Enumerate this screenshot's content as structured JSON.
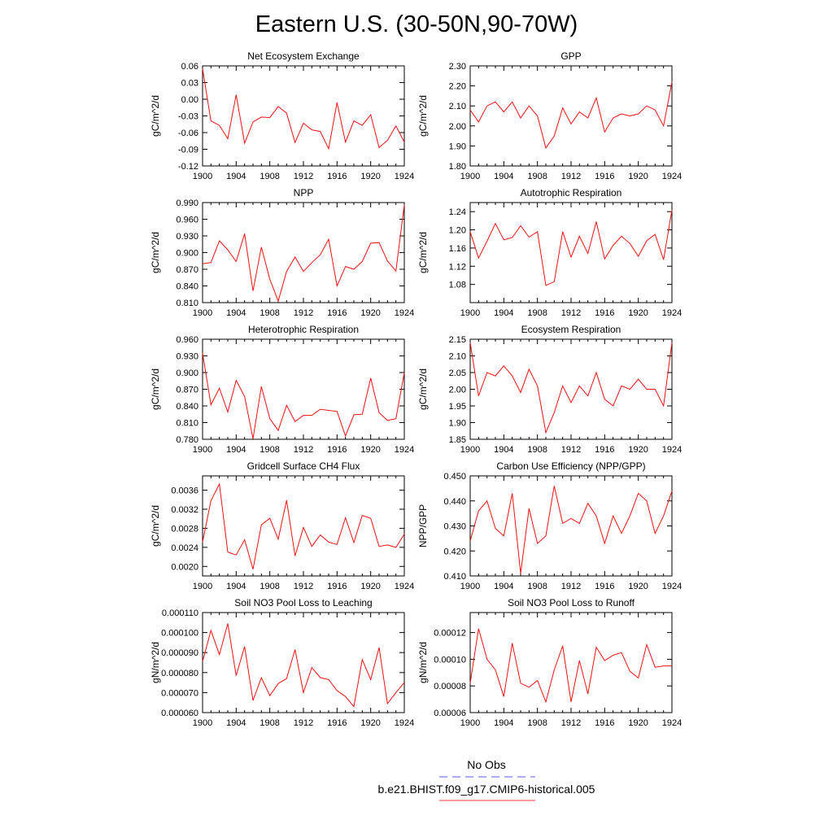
{
  "title": "Eastern U.S. (30-50N,90-70W)",
  "legend": {
    "entries": [
      {
        "name": "No Obs",
        "color": "#5555ee",
        "dashed": true
      },
      {
        "name": "b.e21.BHIST.f09_g17.CMIP6-historical.005",
        "color": "#ee3333",
        "dashed": false
      }
    ]
  },
  "chart_data": [
    {
      "type": "line",
      "title": "Net Ecosystem Exchange",
      "ylabel": "gC/m^2/d",
      "xlim": [
        1900,
        1924
      ],
      "xticks": [
        1900,
        1904,
        1908,
        1912,
        1916,
        1920,
        1924
      ],
      "ylim": [
        -0.12,
        0.06
      ],
      "yticks": [
        "0.06",
        "0.03",
        "0.00",
        "-0.03",
        "-0.06",
        "-0.09",
        "-0.12"
      ],
      "series": [
        {
          "color": "#ee1111",
          "x": [
            1900,
            1901,
            1902,
            1903,
            1904,
            1905,
            1906,
            1907,
            1908,
            1909,
            1910,
            1911,
            1912,
            1913,
            1914,
            1915,
            1916,
            1917,
            1918,
            1919,
            1920,
            1921,
            1922,
            1923,
            1924
          ],
          "y": [
            0.055,
            -0.039,
            -0.047,
            -0.071,
            0.008,
            -0.079,
            -0.041,
            -0.032,
            -0.033,
            -0.013,
            -0.025,
            -0.078,
            -0.043,
            -0.055,
            -0.058,
            -0.089,
            -0.006,
            -0.077,
            -0.039,
            -0.047,
            -0.028,
            -0.087,
            -0.074,
            -0.048,
            -0.077
          ]
        }
      ]
    },
    {
      "type": "line",
      "title": "GPP",
      "ylabel": "gC/m^2/d",
      "xlim": [
        1900,
        1924
      ],
      "xticks": [
        1900,
        1904,
        1908,
        1912,
        1916,
        1920,
        1924
      ],
      "ylim": [
        1.8,
        2.3
      ],
      "yticks": [
        "2.30",
        "2.20",
        "2.10",
        "2.00",
        "1.90",
        "1.80"
      ],
      "series": [
        {
          "color": "#ee1111",
          "x": [
            1900,
            1901,
            1902,
            1903,
            1904,
            1905,
            1906,
            1907,
            1908,
            1909,
            1910,
            1911,
            1912,
            1913,
            1914,
            1915,
            1916,
            1917,
            1918,
            1919,
            1920,
            1921,
            1922,
            1923,
            1924
          ],
          "y": [
            2.08,
            2.02,
            2.1,
            2.12,
            2.07,
            2.12,
            2.04,
            2.1,
            2.05,
            1.89,
            1.95,
            2.09,
            2.01,
            2.07,
            2.04,
            2.14,
            1.97,
            2.04,
            2.06,
            2.05,
            2.06,
            2.1,
            2.08,
            2.0,
            2.22
          ]
        }
      ]
    },
    {
      "type": "line",
      "title": "NPP",
      "ylabel": "gC/m^2/d",
      "xlim": [
        1900,
        1924
      ],
      "xticks": [
        1900,
        1904,
        1908,
        1912,
        1916,
        1920,
        1924
      ],
      "ylim": [
        0.81,
        0.99
      ],
      "yticks": [
        "0.990",
        "0.960",
        "0.930",
        "0.900",
        "0.870",
        "0.840",
        "0.810"
      ],
      "series": [
        {
          "color": "#ee1111",
          "x": [
            1900,
            1901,
            1902,
            1903,
            1904,
            1905,
            1906,
            1907,
            1908,
            1909,
            1910,
            1911,
            1912,
            1913,
            1914,
            1915,
            1916,
            1917,
            1918,
            1919,
            1920,
            1921,
            1922,
            1923,
            1924
          ],
          "y": [
            0.88,
            0.882,
            0.921,
            0.905,
            0.884,
            0.934,
            0.831,
            0.91,
            0.852,
            0.813,
            0.866,
            0.892,
            0.866,
            0.882,
            0.896,
            0.924,
            0.84,
            0.875,
            0.87,
            0.884,
            0.917,
            0.918,
            0.885,
            0.867,
            0.986
          ]
        }
      ]
    },
    {
      "type": "line",
      "title": "Autotrophic Respiration",
      "ylabel": "gC/m^2/d",
      "xlim": [
        1900,
        1924
      ],
      "xticks": [
        1900,
        1904,
        1908,
        1912,
        1916,
        1920,
        1924
      ],
      "ylim": [
        1.04,
        1.26
      ],
      "yticks": [
        "1.24",
        "1.20",
        "1.16",
        "1.12",
        "1.08"
      ],
      "series": [
        {
          "color": "#ee1111",
          "x": [
            1900,
            1901,
            1902,
            1903,
            1904,
            1905,
            1906,
            1907,
            1908,
            1909,
            1910,
            1911,
            1912,
            1913,
            1914,
            1915,
            1916,
            1917,
            1918,
            1919,
            1920,
            1921,
            1922,
            1923,
            1924
          ],
          "y": [
            1.196,
            1.138,
            1.175,
            1.214,
            1.178,
            1.183,
            1.209,
            1.184,
            1.196,
            1.078,
            1.086,
            1.196,
            1.14,
            1.186,
            1.148,
            1.218,
            1.136,
            1.166,
            1.186,
            1.17,
            1.142,
            1.176,
            1.19,
            1.134,
            1.244
          ]
        }
      ]
    },
    {
      "type": "line",
      "title": "Heterotrophic Respiration",
      "ylabel": "gC/m^2/d",
      "xlim": [
        1900,
        1924
      ],
      "xticks": [
        1900,
        1904,
        1908,
        1912,
        1916,
        1920,
        1924
      ],
      "ylim": [
        0.78,
        0.96
      ],
      "yticks": [
        "0.960",
        "0.930",
        "0.900",
        "0.870",
        "0.840",
        "0.810",
        "0.780"
      ],
      "series": [
        {
          "color": "#ee1111",
          "x": [
            1900,
            1901,
            1902,
            1903,
            1904,
            1905,
            1906,
            1907,
            1908,
            1909,
            1910,
            1911,
            1912,
            1913,
            1914,
            1915,
            1916,
            1917,
            1918,
            1919,
            1920,
            1921,
            1922,
            1923,
            1924
          ],
          "y": [
            0.935,
            0.842,
            0.872,
            0.829,
            0.886,
            0.857,
            0.781,
            0.875,
            0.817,
            0.796,
            0.841,
            0.812,
            0.823,
            0.823,
            0.834,
            0.832,
            0.83,
            0.786,
            0.824,
            0.825,
            0.89,
            0.828,
            0.814,
            0.817,
            0.9
          ]
        }
      ]
    },
    {
      "type": "line",
      "title": "Ecosystem Respiration",
      "ylabel": "gC/m^2/d",
      "xlim": [
        1900,
        1924
      ],
      "xticks": [
        1900,
        1904,
        1908,
        1912,
        1916,
        1920,
        1924
      ],
      "ylim": [
        1.85,
        2.15
      ],
      "yticks": [
        "2.15",
        "2.10",
        "2.05",
        "2.00",
        "1.95",
        "1.90",
        "1.85"
      ],
      "series": [
        {
          "color": "#ee1111",
          "x": [
            1900,
            1901,
            1902,
            1903,
            1904,
            1905,
            1906,
            1907,
            1908,
            1909,
            1910,
            1911,
            1912,
            1913,
            1914,
            1915,
            1916,
            1917,
            1918,
            1919,
            1920,
            1921,
            1922,
            1923,
            1924
          ],
          "y": [
            2.14,
            1.98,
            2.05,
            2.04,
            2.07,
            2.04,
            1.99,
            2.06,
            2.01,
            1.87,
            1.93,
            2.01,
            1.96,
            2.01,
            1.98,
            2.05,
            1.97,
            1.95,
            2.01,
            2.0,
            2.03,
            2.0,
            2.0,
            1.95,
            2.14
          ]
        }
      ]
    },
    {
      "type": "line",
      "title": "Gridcell Surface CH4 Flux",
      "ylabel": "gC/m^2/d",
      "xlim": [
        1900,
        1924
      ],
      "xticks": [
        1900,
        1904,
        1908,
        1912,
        1916,
        1920,
        1924
      ],
      "ylim": [
        0.0018,
        0.0039
      ],
      "yticks": [
        "0.0036",
        "0.0032",
        "0.0028",
        "0.0024",
        "0.0020"
      ],
      "series": [
        {
          "color": "#ee1111",
          "x": [
            1900,
            1901,
            1902,
            1903,
            1904,
            1905,
            1906,
            1907,
            1908,
            1909,
            1910,
            1911,
            1912,
            1913,
            1914,
            1915,
            1916,
            1917,
            1918,
            1919,
            1920,
            1921,
            1922,
            1923,
            1924
          ],
          "y": [
            0.00251,
            0.00338,
            0.00373,
            0.0023,
            0.00224,
            0.00256,
            0.00194,
            0.00287,
            0.00301,
            0.00257,
            0.00339,
            0.00222,
            0.00282,
            0.00242,
            0.00266,
            0.00251,
            0.00246,
            0.00302,
            0.0025,
            0.00307,
            0.00301,
            0.00242,
            0.00245,
            0.0024,
            0.00268
          ]
        }
      ]
    },
    {
      "type": "line",
      "title": "Carbon Use Efficiency (NPP/GPP)",
      "ylabel": "NPP/GPP",
      "xlim": [
        1900,
        1924
      ],
      "xticks": [
        1900,
        1904,
        1908,
        1912,
        1916,
        1920,
        1924
      ],
      "ylim": [
        0.41,
        0.45
      ],
      "yticks": [
        "0.450",
        "0.440",
        "0.430",
        "0.420",
        "0.410"
      ],
      "series": [
        {
          "color": "#ee1111",
          "x": [
            1900,
            1901,
            1902,
            1903,
            1904,
            1905,
            1906,
            1907,
            1908,
            1909,
            1910,
            1911,
            1912,
            1913,
            1914,
            1915,
            1916,
            1917,
            1918,
            1919,
            1920,
            1921,
            1922,
            1923,
            1924
          ],
          "y": [
            0.424,
            0.436,
            0.44,
            0.429,
            0.426,
            0.443,
            0.411,
            0.437,
            0.423,
            0.426,
            0.446,
            0.431,
            0.433,
            0.431,
            0.439,
            0.434,
            0.423,
            0.434,
            0.427,
            0.434,
            0.443,
            0.44,
            0.427,
            0.434,
            0.444
          ]
        }
      ]
    },
    {
      "type": "line",
      "title": "Soil NO3 Pool Loss to Leaching",
      "ylabel": "gN/m^2/d",
      "xlim": [
        1900,
        1924
      ],
      "xticks": [
        1900,
        1904,
        1908,
        1912,
        1916,
        1920,
        1924
      ],
      "ylim": [
        6e-05,
        0.00011
      ],
      "yticks": [
        "0.000110",
        "0.000100",
        "0.000090",
        "0.000080",
        "0.000070",
        "0.000060"
      ],
      "series": [
        {
          "color": "#ee1111",
          "x": [
            1900,
            1901,
            1902,
            1903,
            1904,
            1905,
            1906,
            1907,
            1908,
            1909,
            1910,
            1911,
            1912,
            1913,
            1914,
            1915,
            1916,
            1917,
            1918,
            1919,
            1920,
            1921,
            1922,
            1923,
            1924
          ],
          "y": [
            8.55e-05,
            0.000101,
            8.9e-05,
            0.0001045,
            7.85e-05,
            9.3e-05,
            6.6e-05,
            7.75e-05,
            6.85e-05,
            7.45e-05,
            7.7e-05,
            9.15e-05,
            7e-05,
            8.25e-05,
            7.75e-05,
            7.65e-05,
            7.1e-05,
            6.8e-05,
            6.3e-05,
            8.65e-05,
            7.65e-05,
            9.25e-05,
            6.45e-05,
            7e-05,
            7.5e-05
          ]
        }
      ]
    },
    {
      "type": "line",
      "title": "Soil NO3 Pool Loss to Runoff",
      "ylabel": "gN/m^2/d",
      "xlim": [
        1900,
        1924
      ],
      "xticks": [
        1900,
        1904,
        1908,
        1912,
        1916,
        1920,
        1924
      ],
      "ylim": [
        6e-05,
        0.000135
      ],
      "yticks": [
        "0.00012",
        "0.00010",
        "0.00008",
        "0.00006"
      ],
      "series": [
        {
          "color": "#ee1111",
          "x": [
            1900,
            1901,
            1902,
            1903,
            1904,
            1905,
            1906,
            1907,
            1908,
            1909,
            1910,
            1911,
            1912,
            1913,
            1914,
            1915,
            1916,
            1917,
            1918,
            1919,
            1920,
            1921,
            1922,
            1923,
            1924
          ],
          "y": [
            8.2e-05,
            0.000123,
            0.0001,
            9.2e-05,
            7.2e-05,
            0.000112,
            8.2e-05,
            7.9e-05,
            8.4e-05,
            6.8e-05,
            9.2e-05,
            0.00011,
            6.8e-05,
            9.9e-05,
            7.4e-05,
            0.000109,
            9.9e-05,
            0.000103,
            0.000105,
            9.1e-05,
            8.6e-05,
            0.000111,
            9.4e-05,
            9.5e-05,
            9.5e-05
          ]
        }
      ]
    }
  ]
}
